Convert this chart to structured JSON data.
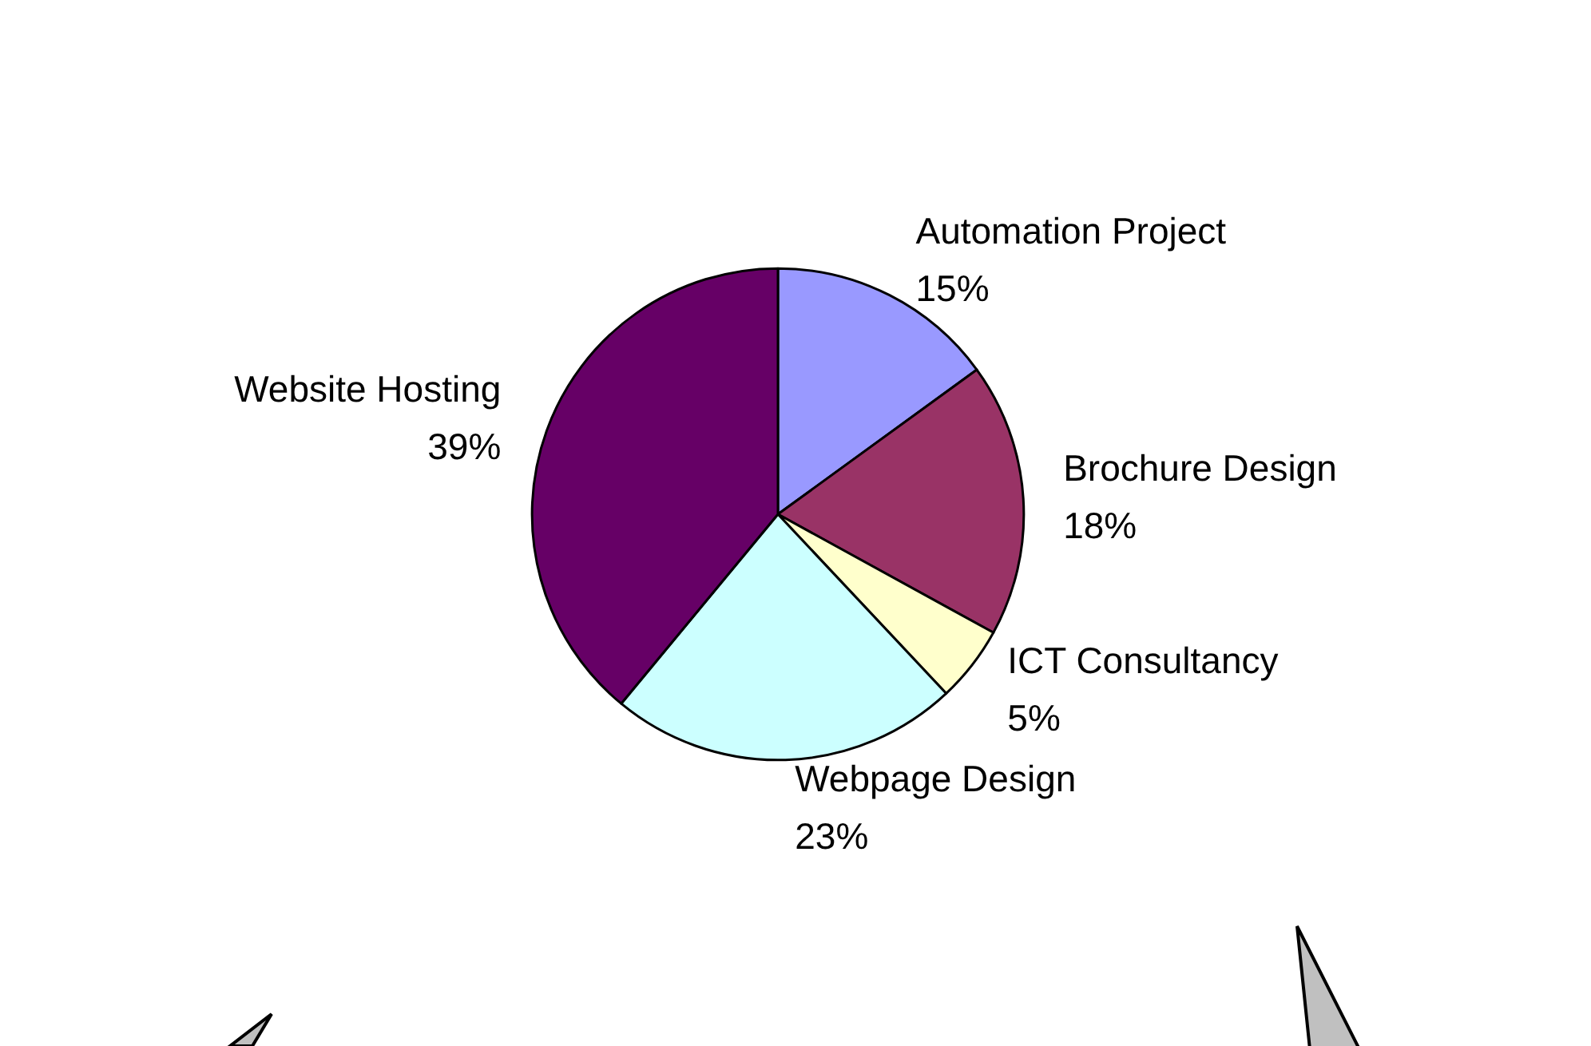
{
  "chart_data": {
    "type": "pie",
    "categories": [
      "Automation Project",
      "Brochure Design",
      "ICT Consultancy",
      "Webpage Design",
      "Website Hosting"
    ],
    "values": [
      15,
      18,
      5,
      23,
      39
    ],
    "value_labels": [
      "15%",
      "18%",
      "5%",
      "23%",
      "39%"
    ],
    "colors": [
      "#9999ff",
      "#993366",
      "#ffffcc",
      "#ccffff",
      "#660066"
    ],
    "legend": false
  }
}
